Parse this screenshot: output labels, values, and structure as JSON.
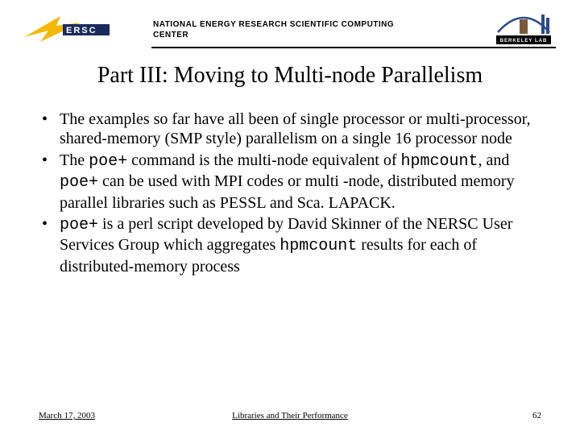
{
  "header": {
    "nersc_label": "ERSC",
    "org_line1": "NATIONAL ENERGY RESEARCH SCIENTIFIC COMPUTING",
    "org_line2": "CENTER",
    "lab_label": "BERKELEY LAB",
    "nersc_gold": "#f5b800",
    "nersc_navy": "#1a2a5c",
    "lab_blue": "#2a4b8d",
    "lab_brown": "#7a5a3a"
  },
  "title": "Part III: Moving to Multi-node Parallelism",
  "bullets": [
    {
      "segments": [
        {
          "text": "The examples so far have all been of single processor or multi-processor, shared-memory (SMP style) parallelism on a single 16 processor node",
          "mono": false
        }
      ]
    },
    {
      "segments": [
        {
          "text": "The ",
          "mono": false
        },
        {
          "text": "poe+",
          "mono": true
        },
        {
          "text": " command is the multi-node equivalent of ",
          "mono": false
        },
        {
          "text": "hpmcount",
          "mono": true
        },
        {
          "text": ", and ",
          "mono": false
        },
        {
          "text": "poe+",
          "mono": true
        },
        {
          "text": " can be used with MPI codes or multi -node, distributed memory parallel libraries such as PESSL and Sca. LAPACK.",
          "mono": false
        }
      ]
    },
    {
      "segments": [
        {
          "text": "poe+",
          "mono": true
        },
        {
          "text": " is a perl script developed by David Skinner of the NERSC User Services Group which aggregates ",
          "mono": false
        },
        {
          "text": "hpmcount",
          "mono": true
        },
        {
          "text": " results for each of distributed-memory process",
          "mono": false
        }
      ]
    }
  ],
  "footer": {
    "date": "March 17, 2003",
    "center": "Libraries and Their Performance",
    "page": "62"
  }
}
